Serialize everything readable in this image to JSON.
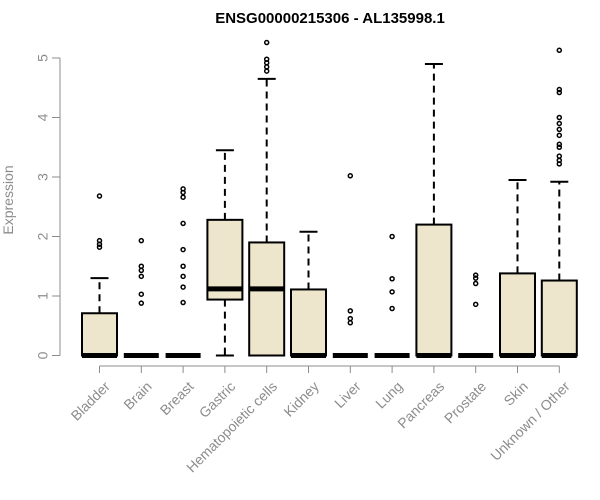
{
  "chart_data": {
    "type": "boxplot",
    "title": "ENSG00000215306 - AL135998.1",
    "ylabel": "Expression",
    "xlabel": "",
    "ylim": [
      0,
      5.25
    ],
    "yticks": [
      0,
      1,
      2,
      3,
      4,
      5
    ],
    "box_fill": "#ede6cc",
    "axis_color": "#8c8c8c",
    "categories": [
      "Bladder",
      "Brain",
      "Breast",
      "Gastric",
      "Hematopoietic cells",
      "Kidney",
      "Liver",
      "Lung",
      "Pancreas",
      "Prostate",
      "Skin",
      "Unknown / Other"
    ],
    "boxes": [
      {
        "q1": 0,
        "median": 0,
        "q3": 0.71,
        "whisker_low": 0,
        "whisker_high": 1.3,
        "outliers": [
          1.82,
          1.87,
          1.93,
          2.68
        ]
      },
      {
        "q1": 0,
        "median": 0,
        "q3": 0,
        "whisker_low": 0,
        "whisker_high": 0,
        "outliers": [
          0.88,
          1.03,
          1.33,
          1.43,
          1.5,
          1.93
        ]
      },
      {
        "q1": 0,
        "median": 0,
        "q3": 0,
        "whisker_low": 0,
        "whisker_high": 0,
        "outliers": [
          0.89,
          1.15,
          1.33,
          1.5,
          1.78,
          2.22,
          2.66,
          2.74,
          2.8
        ]
      },
      {
        "q1": 0.94,
        "median": 1.12,
        "q3": 2.28,
        "whisker_low": 0,
        "whisker_high": 3.45,
        "outliers": []
      },
      {
        "q1": 0,
        "median": 1.12,
        "q3": 1.9,
        "whisker_low": 0,
        "whisker_high": 4.65,
        "outliers": [
          4.78,
          4.85,
          4.92,
          4.98,
          5.26
        ]
      },
      {
        "q1": 0,
        "median": 0,
        "q3": 1.11,
        "whisker_low": 0,
        "whisker_high": 2.08,
        "outliers": []
      },
      {
        "q1": 0,
        "median": 0,
        "q3": 0,
        "whisker_low": 0,
        "whisker_high": 0,
        "outliers": [
          0.55,
          0.62,
          0.75,
          3.02
        ]
      },
      {
        "q1": 0,
        "median": 0,
        "q3": 0,
        "whisker_low": 0,
        "whisker_high": 0,
        "outliers": [
          0.79,
          1.07,
          1.29,
          2.0
        ]
      },
      {
        "q1": 0,
        "median": 0,
        "q3": 2.2,
        "whisker_low": 0,
        "whisker_high": 4.9,
        "outliers": []
      },
      {
        "q1": 0,
        "median": 0,
        "q3": 0,
        "whisker_low": 0,
        "whisker_high": 0,
        "outliers": [
          0.86,
          1.21,
          1.3,
          1.35
        ]
      },
      {
        "q1": 0,
        "median": 0,
        "q3": 1.38,
        "whisker_low": 0,
        "whisker_high": 2.95,
        "outliers": []
      },
      {
        "q1": 0,
        "median": 0,
        "q3": 1.26,
        "whisker_low": 0,
        "whisker_high": 2.92,
        "outliers": [
          3.22,
          3.28,
          3.35,
          3.5,
          3.55,
          3.7,
          3.8,
          3.9,
          4.0,
          4.42,
          4.47,
          5.13
        ]
      }
    ]
  }
}
